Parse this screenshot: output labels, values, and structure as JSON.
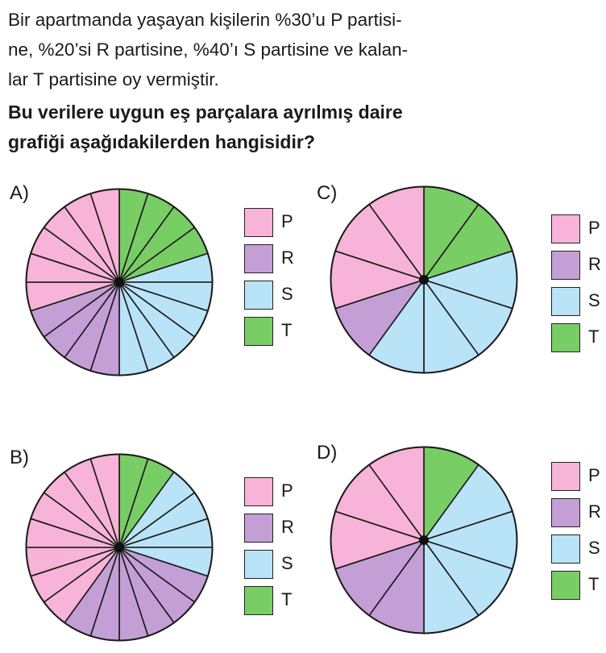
{
  "question": {
    "lines": [
      "Bir apartmanda yaşayan kişilerin %30’u P partisi-",
      "ne, %20’si R partisine, %40’ı S partisine ve kalan-",
      "lar T partisine oy vermiştir."
    ],
    "bold_lines": [
      "Bu verilere uygun eş parçalara ayrılmış daire",
      "grafiği aşağıdakilerden hangisidir?"
    ]
  },
  "colors": {
    "P": "#f7b3d8",
    "R": "#c39fd6",
    "S": "#b9e3f7",
    "T": "#79cd65"
  },
  "chart_data": [
    {
      "type": "pie",
      "option": "A)",
      "slices": 20,
      "sequence": [
        {
          "label": "T",
          "count": 4
        },
        {
          "label": "S",
          "count": 6
        },
        {
          "label": "R",
          "count": 4
        },
        {
          "label": "P",
          "count": 6
        }
      ],
      "legend": [
        "P",
        "R",
        "S",
        "T"
      ]
    },
    {
      "type": "pie",
      "option": "B)",
      "slices": 20,
      "sequence": [
        {
          "label": "T",
          "count": 2
        },
        {
          "label": "S",
          "count": 4
        },
        {
          "label": "R",
          "count": 6
        },
        {
          "label": "P",
          "count": 8
        }
      ],
      "legend": [
        "P",
        "R",
        "S",
        "T"
      ]
    },
    {
      "type": "pie",
      "option": "C)",
      "slices": 10,
      "sequence": [
        {
          "label": "T",
          "count": 2
        },
        {
          "label": "S",
          "count": 4
        },
        {
          "label": "R",
          "count": 1
        },
        {
          "label": "P",
          "count": 3
        }
      ],
      "legend": [
        "P",
        "R",
        "S",
        "T"
      ]
    },
    {
      "type": "pie",
      "option": "D)",
      "slices": 10,
      "sequence": [
        {
          "label": "T",
          "count": 1
        },
        {
          "label": "S",
          "count": 4
        },
        {
          "label": "R",
          "count": 2
        },
        {
          "label": "P",
          "count": 3
        }
      ],
      "legend": [
        "P",
        "R",
        "S",
        "T"
      ]
    }
  ]
}
